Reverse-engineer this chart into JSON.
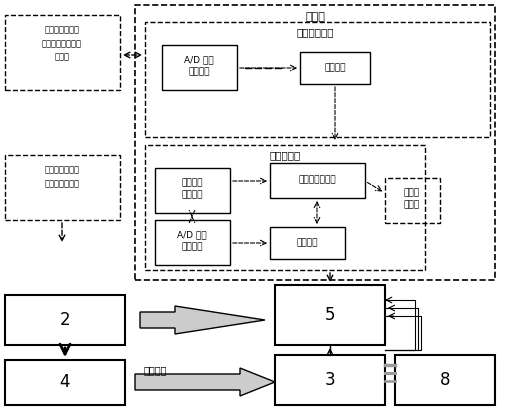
{
  "bg_color": "#ffffff",
  "title": "",
  "upper_host_label": "上位机",
  "system_model_label": "系统控制模型",
  "interrupt_model_label": "中断子模型",
  "box1_lines": [
    "A/D 转换",
    "采集频率"
  ],
  "box2_label": "调频模型",
  "box3_lines": [
    "中点电位",
    "控制模型"
  ],
  "box4_lines": [
    "占空比计算模型"
  ],
  "box5_lines": [
    "A/D 转换",
    "采集电压"
  ],
  "box6_label": "调压模型",
  "box7_lines": [
    "控制信",
    "号输出"
  ],
  "left_box1_lines": [
    "连续的测试与验",
    "证，反复修改，不",
    "断优化"
  ],
  "left_box2_lines": [
    "经目标语言编译",
    "器自动生成代码"
  ],
  "bottom_box2": "2",
  "bottom_box4": "4",
  "bottom_box5": "5",
  "bottom_box3": "3",
  "bottom_box8": "8",
  "drive_signal": "驱动信号"
}
